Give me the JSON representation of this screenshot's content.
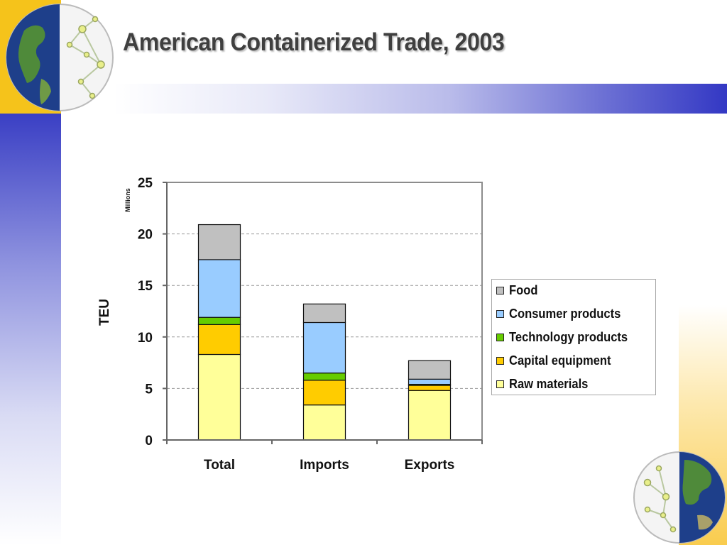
{
  "slide": {
    "title": "American Containerized Trade, 2003"
  },
  "colors": {
    "left_band": "#3a3fc4",
    "corner_band": "#f5c31b"
  },
  "chart_data": {
    "type": "bar",
    "stacked": true,
    "categories": [
      "Total",
      "Imports",
      "Exports"
    ],
    "ylabel": "TEU",
    "yunit": "Millions",
    "ylim": [
      0,
      25
    ],
    "yticks": [
      0,
      5,
      10,
      15,
      20,
      25
    ],
    "grid": true,
    "legend_position": "right",
    "series": [
      {
        "name": "Raw materials",
        "color": "#ffff99",
        "values": [
          8.3,
          3.4,
          4.8
        ]
      },
      {
        "name": "Capital equipment",
        "color": "#ffcc00",
        "values": [
          2.9,
          2.4,
          0.5
        ]
      },
      {
        "name": "Technology products",
        "color": "#66cc00",
        "values": [
          0.7,
          0.7,
          0.1
        ]
      },
      {
        "name": "Consumer products",
        "color": "#99ccff",
        "values": [
          5.6,
          4.9,
          0.5
        ]
      },
      {
        "name": "Food",
        "color": "#c0c0c0",
        "values": [
          3.4,
          1.8,
          1.8
        ]
      }
    ]
  }
}
